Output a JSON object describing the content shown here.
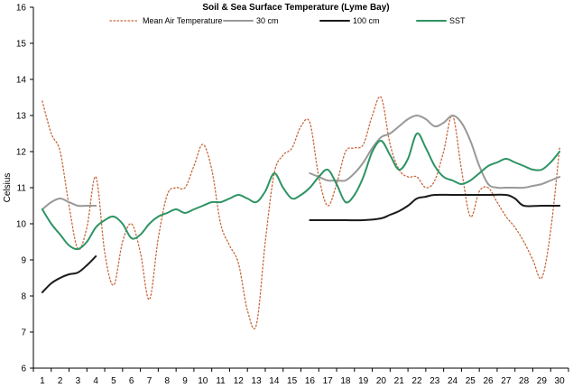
{
  "chart_data": {
    "type": "line",
    "title": "Soil & Sea Surface Temperature (Lyme Bay)",
    "xlabel": "",
    "ylabel": "Celsius",
    "x": [
      1,
      2,
      3,
      4,
      5,
      6,
      7,
      8,
      9,
      10,
      11,
      12,
      13,
      14,
      15,
      16,
      17,
      18,
      19,
      20,
      21,
      22,
      23,
      24,
      25,
      26,
      27,
      28,
      29,
      30
    ],
    "xlim": [
      1,
      30
    ],
    "ylim": [
      6,
      16
    ],
    "yticks": [
      6,
      7,
      8,
      9,
      10,
      11,
      12,
      13,
      14,
      15,
      16
    ],
    "grid": false,
    "legend_position": "top",
    "series": [
      {
        "name": "Mean Air Temperature",
        "color": "#c8673a",
        "style": "dotted",
        "x": [
          1,
          1.5,
          2,
          2.5,
          3,
          3.5,
          4,
          4.5,
          5,
          5.5,
          6,
          6.5,
          7,
          7.5,
          8,
          8.5,
          9,
          9.5,
          10,
          10.5,
          11,
          11.5,
          12,
          12.5,
          13,
          13.5,
          14,
          14.5,
          15,
          15.5,
          16,
          16.5,
          17,
          17.5,
          18,
          18.5,
          19,
          19.5,
          20,
          20.5,
          21,
          21.5,
          22,
          22.5,
          23,
          23.5,
          24,
          24.5,
          25,
          25.5,
          26,
          26.5,
          27,
          27.5,
          28,
          28.5,
          29,
          29.5,
          30
        ],
        "values": [
          13.4,
          12.5,
          12.0,
          10.5,
          9.3,
          9.9,
          11.3,
          9.2,
          8.3,
          9.5,
          10.0,
          9.2,
          7.9,
          9.6,
          10.8,
          11.0,
          11.0,
          11.6,
          12.2,
          11.5,
          10.0,
          9.4,
          8.9,
          7.6,
          7.2,
          9.5,
          11.4,
          11.9,
          12.1,
          12.7,
          12.8,
          11.3,
          10.5,
          11.1,
          12.0,
          12.1,
          12.2,
          13.0,
          13.5,
          12.2,
          11.5,
          11.3,
          11.3,
          11.0,
          11.2,
          12.0,
          13.0,
          11.5,
          10.2,
          10.9,
          11.0,
          10.6,
          10.2,
          9.9,
          9.5,
          9.0,
          8.5,
          9.8,
          12.1
        ]
      },
      {
        "name": "30 cm",
        "color": "#999999",
        "style": "solid",
        "x": [
          1,
          1.5,
          2,
          2.5,
          3,
          3.5,
          4,
          16,
          16.5,
          17,
          17.5,
          18,
          18.5,
          19,
          19.5,
          20,
          20.5,
          21,
          21.5,
          22,
          22.5,
          23,
          23.5,
          24,
          24.5,
          25,
          25.5,
          26,
          26.5,
          27,
          27.5,
          28,
          28.5,
          29,
          29.5,
          30
        ],
        "values": [
          10.4,
          10.6,
          10.7,
          10.6,
          10.5,
          10.5,
          10.5,
          11.4,
          11.3,
          11.2,
          11.2,
          11.2,
          11.4,
          11.7,
          12.1,
          12.4,
          12.5,
          12.7,
          12.9,
          13.0,
          12.9,
          12.7,
          12.8,
          13.0,
          12.8,
          12.3,
          11.6,
          11.1,
          11.0,
          11.0,
          11.0,
          11.0,
          11.05,
          11.1,
          11.2,
          11.3
        ]
      },
      {
        "name": "100 cm",
        "color": "#1a1a1a",
        "style": "solid",
        "x": [
          1,
          1.5,
          2,
          2.5,
          3,
          3.5,
          4,
          16,
          17,
          18,
          19,
          20,
          20.5,
          21,
          21.5,
          22,
          22.5,
          23,
          24,
          25,
          26,
          27,
          27.5,
          28,
          29,
          30
        ],
        "values": [
          8.1,
          8.35,
          8.5,
          8.6,
          8.65,
          8.85,
          9.1,
          10.1,
          10.1,
          10.1,
          10.1,
          10.15,
          10.25,
          10.35,
          10.5,
          10.7,
          10.75,
          10.8,
          10.8,
          10.8,
          10.8,
          10.8,
          10.7,
          10.5,
          10.5,
          10.5
        ]
      },
      {
        "name": "SST",
        "color": "#2e9464",
        "style": "solid",
        "x": [
          1,
          1.5,
          2,
          2.5,
          3,
          3.5,
          4,
          4.5,
          5,
          5.5,
          6,
          6.5,
          7,
          7.5,
          8,
          8.5,
          9,
          9.5,
          10,
          10.5,
          11,
          11.5,
          12,
          12.5,
          13,
          13.5,
          14,
          14.5,
          15,
          15.5,
          16,
          16.5,
          17,
          17.5,
          18,
          18.5,
          19,
          19.5,
          20,
          20.5,
          21,
          21.5,
          22,
          22.5,
          23,
          23.5,
          24,
          24.5,
          25,
          25.5,
          26,
          26.5,
          27,
          27.5,
          28,
          28.5,
          29,
          29.5,
          30
        ],
        "values": [
          10.4,
          10.0,
          9.7,
          9.4,
          9.3,
          9.5,
          9.9,
          10.1,
          10.2,
          10.0,
          9.6,
          9.7,
          10.0,
          10.2,
          10.3,
          10.4,
          10.3,
          10.4,
          10.5,
          10.6,
          10.6,
          10.7,
          10.8,
          10.7,
          10.6,
          10.9,
          11.4,
          11.0,
          10.7,
          10.8,
          11.0,
          11.3,
          11.5,
          11.1,
          10.6,
          10.8,
          11.3,
          12.0,
          12.3,
          11.9,
          11.5,
          11.8,
          12.5,
          12.1,
          11.6,
          11.3,
          11.2,
          11.1,
          11.2,
          11.4,
          11.6,
          11.7,
          11.8,
          11.7,
          11.6,
          11.5,
          11.5,
          11.7,
          12.0
        ]
      }
    ]
  }
}
